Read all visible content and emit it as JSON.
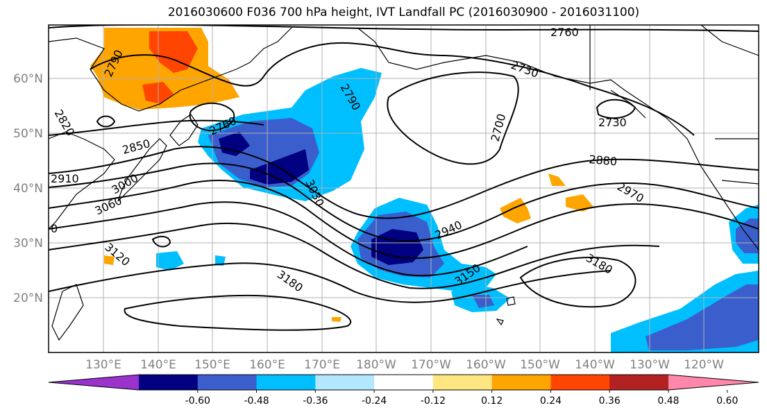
{
  "title": "2016030600 F036 700 hPa height, IVT Landfall PC (2016030900 - 2016031100)",
  "lat_labels": [
    "60°N",
    "50°N",
    "40°N",
    "30°N",
    "20°N"
  ],
  "lon_labels": [
    "130°E",
    "140°E",
    "150°E",
    "160°E",
    "170°E",
    "180°W",
    "170°W",
    "160°W",
    "150°W",
    "140°W",
    "130°W",
    "120°W"
  ],
  "contour_labels": [
    "2760",
    "2730",
    "2790",
    "2790",
    "2760",
    "2820",
    "2850",
    "2910",
    "3000",
    "3060",
    "3120",
    "2700",
    "2730",
    "2880",
    "2970",
    "3030",
    "2940",
    "3150",
    "3180",
    "3180",
    "0"
  ],
  "colorbar": {
    "colors": [
      "#9933cc",
      "#000080",
      "#3a5fcd",
      "#00bfff",
      "#b3e6ff",
      "#ffffff",
      "#ffe680",
      "#ffa500",
      "#ff4500",
      "#b22222",
      "#ff88aa"
    ],
    "tick_labels": [
      "-0.60",
      "-0.48",
      "-0.36",
      "-0.24",
      "-0.12",
      "0.12",
      "0.24",
      "0.36",
      "0.48",
      "0.60"
    ]
  },
  "colors": {
    "blue_light": "#00bfff",
    "blue_mid": "#3a5fcd",
    "blue_dark": "#000080",
    "orange": "#ffa500",
    "red_orange": "#ff4500"
  }
}
